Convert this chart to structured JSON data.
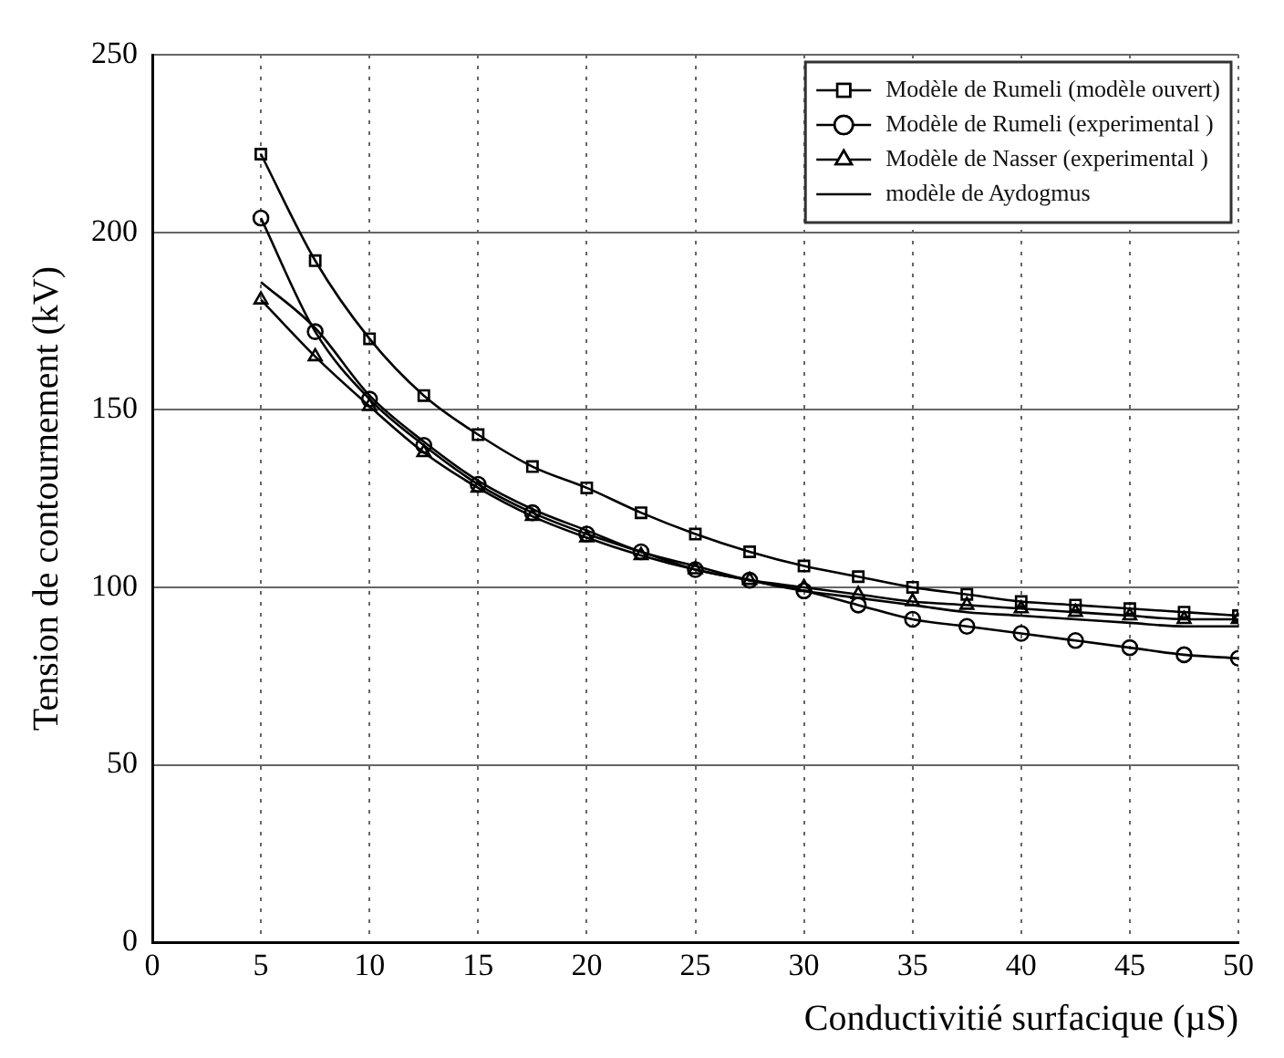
{
  "chart_data": {
    "type": "line",
    "xlabel": "Conductivitié surfacique (µS)",
    "ylabel": "Tension de contournement (kV)",
    "x": [
      5,
      7.5,
      10,
      12.5,
      15,
      17.5,
      20,
      22.5,
      25,
      27.5,
      30,
      32.5,
      35,
      37.5,
      40,
      42.5,
      45,
      47.5,
      50
    ],
    "xlim": [
      0,
      50
    ],
    "xticks": [
      0,
      5,
      10,
      15,
      20,
      25,
      30,
      35,
      40,
      45,
      50
    ],
    "ylim": [
      0,
      250
    ],
    "yticks": [
      0,
      50,
      100,
      150,
      200,
      250
    ],
    "grid": true,
    "legend": "top right",
    "series": [
      {
        "name": "Modèle de Rumeli (modèle ouvert)",
        "color": "#000000",
        "marker": "square",
        "values": [
          222,
          192,
          170,
          154,
          143,
          134,
          128,
          121,
          115,
          110,
          106,
          103,
          100,
          98,
          96,
          95,
          94,
          93,
          92
        ]
      },
      {
        "name": "Modèle de Rumeli (experimental )",
        "color": "#000000",
        "marker": "circle",
        "values": [
          204,
          172,
          153,
          140,
          129,
          121,
          115,
          110,
          105,
          102,
          99,
          95,
          91,
          89,
          87,
          85,
          83,
          81,
          80
        ]
      },
      {
        "name": "Modèle de Nasser (experimental )",
        "color": "#000000",
        "marker": "triangle",
        "values": [
          181,
          165,
          151,
          138,
          128,
          120,
          114,
          109,
          105,
          102,
          100,
          98,
          96,
          95,
          94,
          93,
          92,
          91,
          91
        ]
      },
      {
        "name": "modèle de Aydogmus",
        "color": "#000000",
        "marker": "none",
        "values": [
          186,
          173,
          154,
          141,
          130,
          122,
          116,
          110,
          106,
          102,
          99,
          97,
          95,
          93,
          92,
          91,
          90,
          89,
          89
        ]
      }
    ]
  }
}
